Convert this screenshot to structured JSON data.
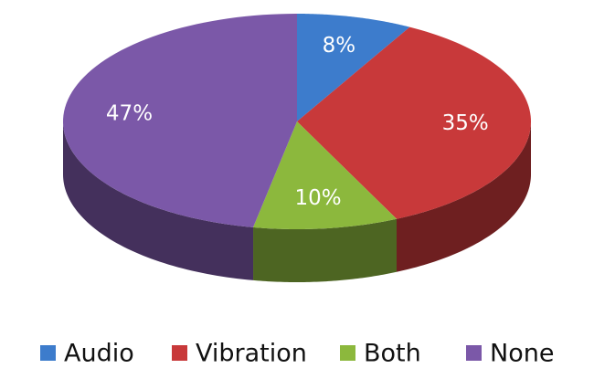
{
  "chart_data": {
    "type": "pie3d",
    "categories": [
      "Audio",
      "Vibration",
      "Both",
      "None"
    ],
    "values": [
      8,
      35,
      10,
      47
    ],
    "value_labels": [
      "8%",
      "35%",
      "10%",
      "47%"
    ],
    "colors": [
      "#3d7ccc",
      "#c8393a",
      "#8cb83d",
      "#7b58a8"
    ]
  }
}
